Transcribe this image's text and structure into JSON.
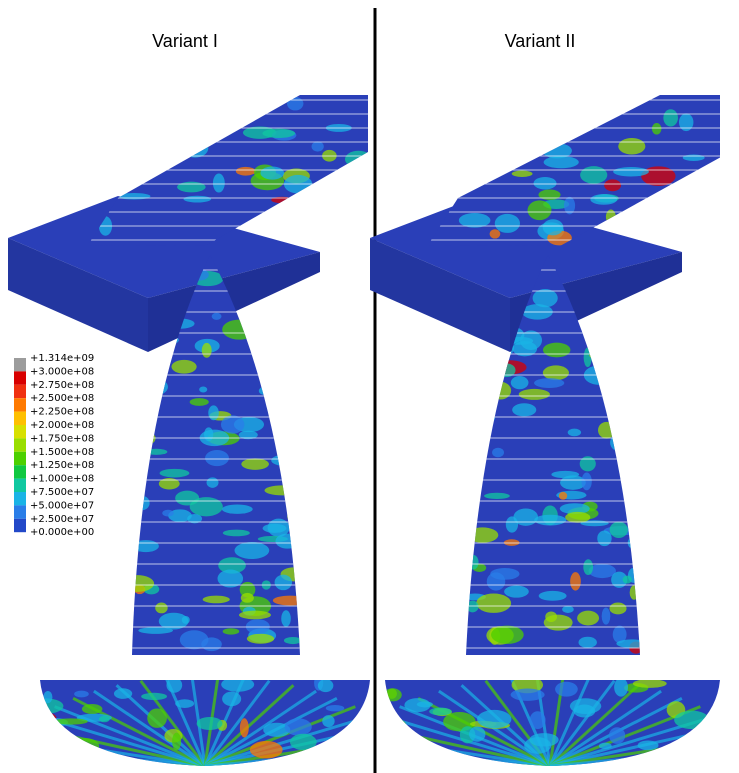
{
  "panels": [
    {
      "title": "Variant I"
    },
    {
      "title": "Variant II"
    }
  ],
  "legend": {
    "labels": [
      "+1.314e+09",
      "+3.000e+08",
      "+2.750e+08",
      "+2.500e+08",
      "+2.250e+08",
      "+2.000e+08",
      "+1.750e+08",
      "+1.500e+08",
      "+1.250e+08",
      "+1.000e+08",
      "+7.500e+07",
      "+5.000e+07",
      "+2.500e+07",
      "+0.000e+00"
    ],
    "colors": [
      "#9c9c9c",
      "#d80000",
      "#f03010",
      "#ff7a00",
      "#ffc000",
      "#d8e000",
      "#9ade00",
      "#4cd000",
      "#10c840",
      "#10c8a0",
      "#1ab4e6",
      "#2a7ee8",
      "#2248c8"
    ]
  }
}
